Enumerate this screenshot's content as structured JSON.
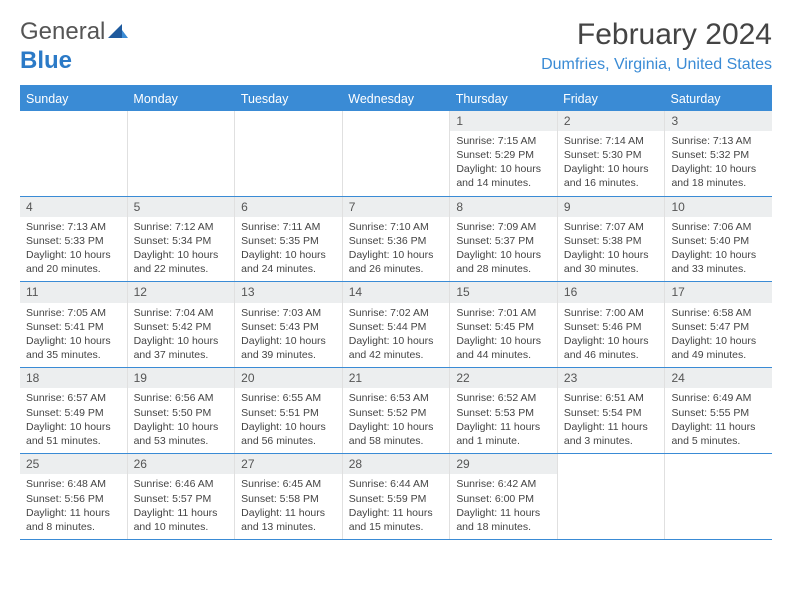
{
  "logo": {
    "word1": "General",
    "word2": "Blue"
  },
  "title": "February 2024",
  "location": "Dumfries, Virginia, United States",
  "colors": {
    "header_bg": "#3a8bd5",
    "header_text": "#ffffff",
    "border": "#3a8bd5",
    "daynum_bg": "#eceeef",
    "logo_accent": "#2b7ac7"
  },
  "daynames": [
    "Sunday",
    "Monday",
    "Tuesday",
    "Wednesday",
    "Thursday",
    "Friday",
    "Saturday"
  ],
  "weeks": [
    [
      {
        "empty": true
      },
      {
        "empty": true
      },
      {
        "empty": true
      },
      {
        "empty": true
      },
      {
        "n": "1",
        "sr": "Sunrise: 7:15 AM",
        "ss": "Sunset: 5:29 PM",
        "dl": "Daylight: 10 hours and 14 minutes."
      },
      {
        "n": "2",
        "sr": "Sunrise: 7:14 AM",
        "ss": "Sunset: 5:30 PM",
        "dl": "Daylight: 10 hours and 16 minutes."
      },
      {
        "n": "3",
        "sr": "Sunrise: 7:13 AM",
        "ss": "Sunset: 5:32 PM",
        "dl": "Daylight: 10 hours and 18 minutes."
      }
    ],
    [
      {
        "n": "4",
        "sr": "Sunrise: 7:13 AM",
        "ss": "Sunset: 5:33 PM",
        "dl": "Daylight: 10 hours and 20 minutes."
      },
      {
        "n": "5",
        "sr": "Sunrise: 7:12 AM",
        "ss": "Sunset: 5:34 PM",
        "dl": "Daylight: 10 hours and 22 minutes."
      },
      {
        "n": "6",
        "sr": "Sunrise: 7:11 AM",
        "ss": "Sunset: 5:35 PM",
        "dl": "Daylight: 10 hours and 24 minutes."
      },
      {
        "n": "7",
        "sr": "Sunrise: 7:10 AM",
        "ss": "Sunset: 5:36 PM",
        "dl": "Daylight: 10 hours and 26 minutes."
      },
      {
        "n": "8",
        "sr": "Sunrise: 7:09 AM",
        "ss": "Sunset: 5:37 PM",
        "dl": "Daylight: 10 hours and 28 minutes."
      },
      {
        "n": "9",
        "sr": "Sunrise: 7:07 AM",
        "ss": "Sunset: 5:38 PM",
        "dl": "Daylight: 10 hours and 30 minutes."
      },
      {
        "n": "10",
        "sr": "Sunrise: 7:06 AM",
        "ss": "Sunset: 5:40 PM",
        "dl": "Daylight: 10 hours and 33 minutes."
      }
    ],
    [
      {
        "n": "11",
        "sr": "Sunrise: 7:05 AM",
        "ss": "Sunset: 5:41 PM",
        "dl": "Daylight: 10 hours and 35 minutes."
      },
      {
        "n": "12",
        "sr": "Sunrise: 7:04 AM",
        "ss": "Sunset: 5:42 PM",
        "dl": "Daylight: 10 hours and 37 minutes."
      },
      {
        "n": "13",
        "sr": "Sunrise: 7:03 AM",
        "ss": "Sunset: 5:43 PM",
        "dl": "Daylight: 10 hours and 39 minutes."
      },
      {
        "n": "14",
        "sr": "Sunrise: 7:02 AM",
        "ss": "Sunset: 5:44 PM",
        "dl": "Daylight: 10 hours and 42 minutes."
      },
      {
        "n": "15",
        "sr": "Sunrise: 7:01 AM",
        "ss": "Sunset: 5:45 PM",
        "dl": "Daylight: 10 hours and 44 minutes."
      },
      {
        "n": "16",
        "sr": "Sunrise: 7:00 AM",
        "ss": "Sunset: 5:46 PM",
        "dl": "Daylight: 10 hours and 46 minutes."
      },
      {
        "n": "17",
        "sr": "Sunrise: 6:58 AM",
        "ss": "Sunset: 5:47 PM",
        "dl": "Daylight: 10 hours and 49 minutes."
      }
    ],
    [
      {
        "n": "18",
        "sr": "Sunrise: 6:57 AM",
        "ss": "Sunset: 5:49 PM",
        "dl": "Daylight: 10 hours and 51 minutes."
      },
      {
        "n": "19",
        "sr": "Sunrise: 6:56 AM",
        "ss": "Sunset: 5:50 PM",
        "dl": "Daylight: 10 hours and 53 minutes."
      },
      {
        "n": "20",
        "sr": "Sunrise: 6:55 AM",
        "ss": "Sunset: 5:51 PM",
        "dl": "Daylight: 10 hours and 56 minutes."
      },
      {
        "n": "21",
        "sr": "Sunrise: 6:53 AM",
        "ss": "Sunset: 5:52 PM",
        "dl": "Daylight: 10 hours and 58 minutes."
      },
      {
        "n": "22",
        "sr": "Sunrise: 6:52 AM",
        "ss": "Sunset: 5:53 PM",
        "dl": "Daylight: 11 hours and 1 minute."
      },
      {
        "n": "23",
        "sr": "Sunrise: 6:51 AM",
        "ss": "Sunset: 5:54 PM",
        "dl": "Daylight: 11 hours and 3 minutes."
      },
      {
        "n": "24",
        "sr": "Sunrise: 6:49 AM",
        "ss": "Sunset: 5:55 PM",
        "dl": "Daylight: 11 hours and 5 minutes."
      }
    ],
    [
      {
        "n": "25",
        "sr": "Sunrise: 6:48 AM",
        "ss": "Sunset: 5:56 PM",
        "dl": "Daylight: 11 hours and 8 minutes."
      },
      {
        "n": "26",
        "sr": "Sunrise: 6:46 AM",
        "ss": "Sunset: 5:57 PM",
        "dl": "Daylight: 11 hours and 10 minutes."
      },
      {
        "n": "27",
        "sr": "Sunrise: 6:45 AM",
        "ss": "Sunset: 5:58 PM",
        "dl": "Daylight: 11 hours and 13 minutes."
      },
      {
        "n": "28",
        "sr": "Sunrise: 6:44 AM",
        "ss": "Sunset: 5:59 PM",
        "dl": "Daylight: 11 hours and 15 minutes."
      },
      {
        "n": "29",
        "sr": "Sunrise: 6:42 AM",
        "ss": "Sunset: 6:00 PM",
        "dl": "Daylight: 11 hours and 18 minutes."
      },
      {
        "empty": true
      },
      {
        "empty": true
      }
    ]
  ]
}
